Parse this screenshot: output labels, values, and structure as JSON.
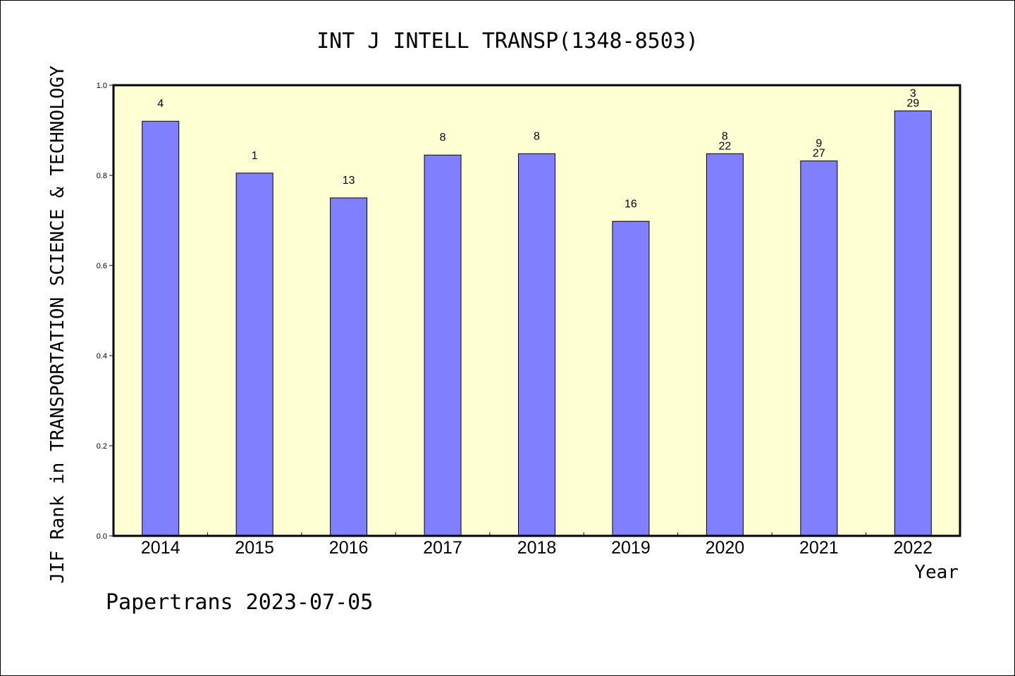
{
  "chart_data": {
    "type": "bar",
    "title": "INT J INTELL TRANSP(1348-8503)",
    "xlabel": "Year",
    "ylabel": "JIF Rank in TRANSPORTATION SCIENCE & TECHNOLOGY",
    "ylim": [
      0,
      1.0
    ],
    "yticks": [
      "0.0",
      "0.2",
      "0.4",
      "0.6",
      "0.8",
      "1.0"
    ],
    "categories": [
      "2014",
      "2015",
      "2016",
      "2017",
      "2018",
      "2019",
      "2020",
      "2021",
      "2022"
    ],
    "values": [
      0.92,
      0.805,
      0.75,
      0.845,
      0.848,
      0.698,
      0.848,
      0.832,
      0.943
    ],
    "labels_upper": [
      "4",
      "1",
      "13",
      "8",
      "8",
      "16",
      "8",
      "9",
      "3"
    ],
    "labels_lower": [
      "",
      "",
      "",
      "",
      "",
      "",
      "22",
      "27",
      "29"
    ],
    "colors": {
      "bar": "#8080ff",
      "plot_background": "#ffffd4",
      "outline": "#000000"
    },
    "grid": false
  },
  "footer": {
    "text": "Papertrans 2023-07-05"
  }
}
